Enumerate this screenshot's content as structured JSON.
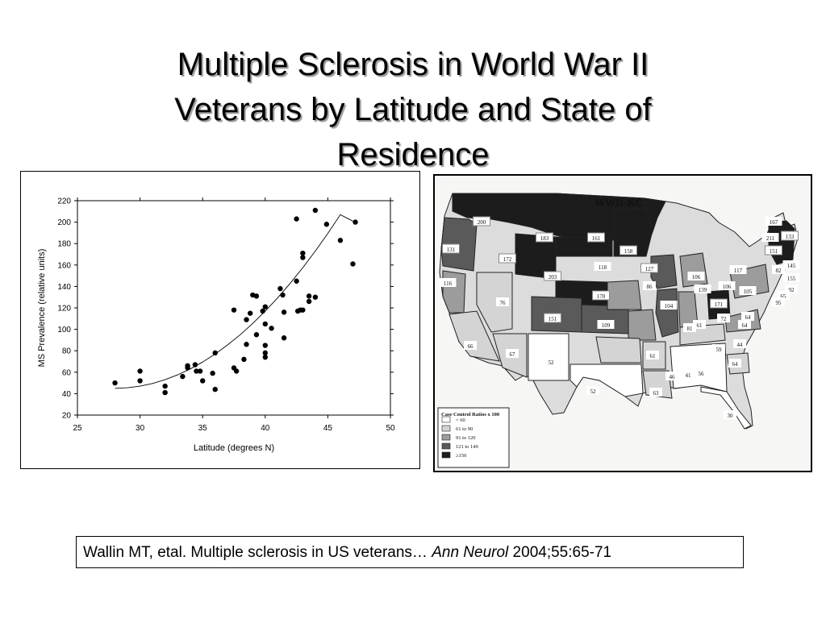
{
  "title_lines": [
    "Multiple Sclerosis in World War II",
    "Veterans by Latitude and State of",
    "Residence"
  ],
  "chart_data": {
    "type": "scatter",
    "xlabel": "Latitude (degrees N)",
    "ylabel": "MS Prevalence (relative units)",
    "xlim": [
      25,
      50
    ],
    "ylim": [
      20,
      220
    ],
    "xticks": [
      25,
      30,
      35,
      40,
      45,
      50
    ],
    "yticks": [
      20,
      40,
      60,
      80,
      100,
      120,
      140,
      160,
      180,
      200,
      220
    ],
    "grid": false,
    "points": [
      [
        28.0,
        50
      ],
      [
        30.0,
        61
      ],
      [
        30.0,
        52
      ],
      [
        32.0,
        47
      ],
      [
        32.0,
        41
      ],
      [
        33.4,
        56
      ],
      [
        33.8,
        64
      ],
      [
        33.8,
        66
      ],
      [
        34.4,
        67
      ],
      [
        34.5,
        61
      ],
      [
        34.8,
        61
      ],
      [
        35.0,
        52
      ],
      [
        35.8,
        59
      ],
      [
        36.0,
        44
      ],
      [
        36.0,
        78
      ],
      [
        37.5,
        64
      ],
      [
        37.5,
        118
      ],
      [
        37.7,
        61
      ],
      [
        38.3,
        72
      ],
      [
        38.5,
        109
      ],
      [
        38.5,
        86
      ],
      [
        38.8,
        115
      ],
      [
        39.0,
        132
      ],
      [
        39.3,
        131
      ],
      [
        39.3,
        95
      ],
      [
        39.8,
        117
      ],
      [
        40.0,
        121
      ],
      [
        40.0,
        105
      ],
      [
        40.0,
        85
      ],
      [
        40.0,
        78
      ],
      [
        40.0,
        74
      ],
      [
        40.5,
        101
      ],
      [
        41.2,
        138
      ],
      [
        41.4,
        132
      ],
      [
        41.5,
        116
      ],
      [
        41.5,
        92
      ],
      [
        42.5,
        203
      ],
      [
        42.5,
        145
      ],
      [
        42.6,
        117
      ],
      [
        42.8,
        118
      ],
      [
        43.0,
        118
      ],
      [
        43.0,
        171
      ],
      [
        43.0,
        167
      ],
      [
        43.5,
        131
      ],
      [
        43.5,
        126
      ],
      [
        44.0,
        211
      ],
      [
        44.0,
        130
      ],
      [
        44.9,
        198
      ],
      [
        46.0,
        183
      ],
      [
        47.0,
        161
      ],
      [
        47.2,
        200
      ]
    ],
    "fit_curve": [
      [
        28,
        45
      ],
      [
        29,
        45.5
      ],
      [
        30,
        47
      ],
      [
        31,
        49.5
      ],
      [
        32,
        53
      ],
      [
        33,
        57.5
      ],
      [
        34,
        63
      ],
      [
        35,
        69.5
      ],
      [
        36,
        77
      ],
      [
        37,
        85.5
      ],
      [
        38,
        95
      ],
      [
        39,
        105.5
      ],
      [
        40,
        117
      ],
      [
        41,
        129.5
      ],
      [
        42,
        143
      ],
      [
        43,
        157.5
      ],
      [
        44,
        173
      ],
      [
        45,
        189.5
      ],
      [
        46,
        207
      ],
      [
        47,
        201
      ]
    ]
  },
  "map": {
    "title": "WWII-KC",
    "legend_title": "Case Control Ratios x 100",
    "legend_items": [
      "< 60",
      "61 to 90",
      "91 to 120",
      "121 to 149",
      "≥150"
    ],
    "legend_colors": [
      "#ffffff",
      "#d4d4d4",
      "#9c9c9c",
      "#5a5a5a",
      "#1c1c1c"
    ],
    "state_values": [
      "200",
      "131",
      "172",
      "183",
      "161",
      "158",
      "203",
      "118",
      "127",
      "116",
      "76",
      "151",
      "170",
      "109",
      "66",
      "67",
      "52",
      "52",
      "139",
      "86",
      "104",
      "106",
      "61",
      "61",
      "46",
      "41",
      "56",
      "63",
      "106",
      "171",
      "64",
      "81",
      "59",
      "72",
      "64",
      "44",
      "64",
      "30",
      "117",
      "105",
      "167",
      "133",
      "145",
      "155",
      "92",
      "82",
      "65",
      "151",
      "95",
      "211"
    ]
  },
  "citation": {
    "authors": "Wallin MT, etal.  Multiple sclerosis in US veterans… ",
    "journal": "Ann Neurol",
    "ref": " 2004;55:65-71"
  }
}
